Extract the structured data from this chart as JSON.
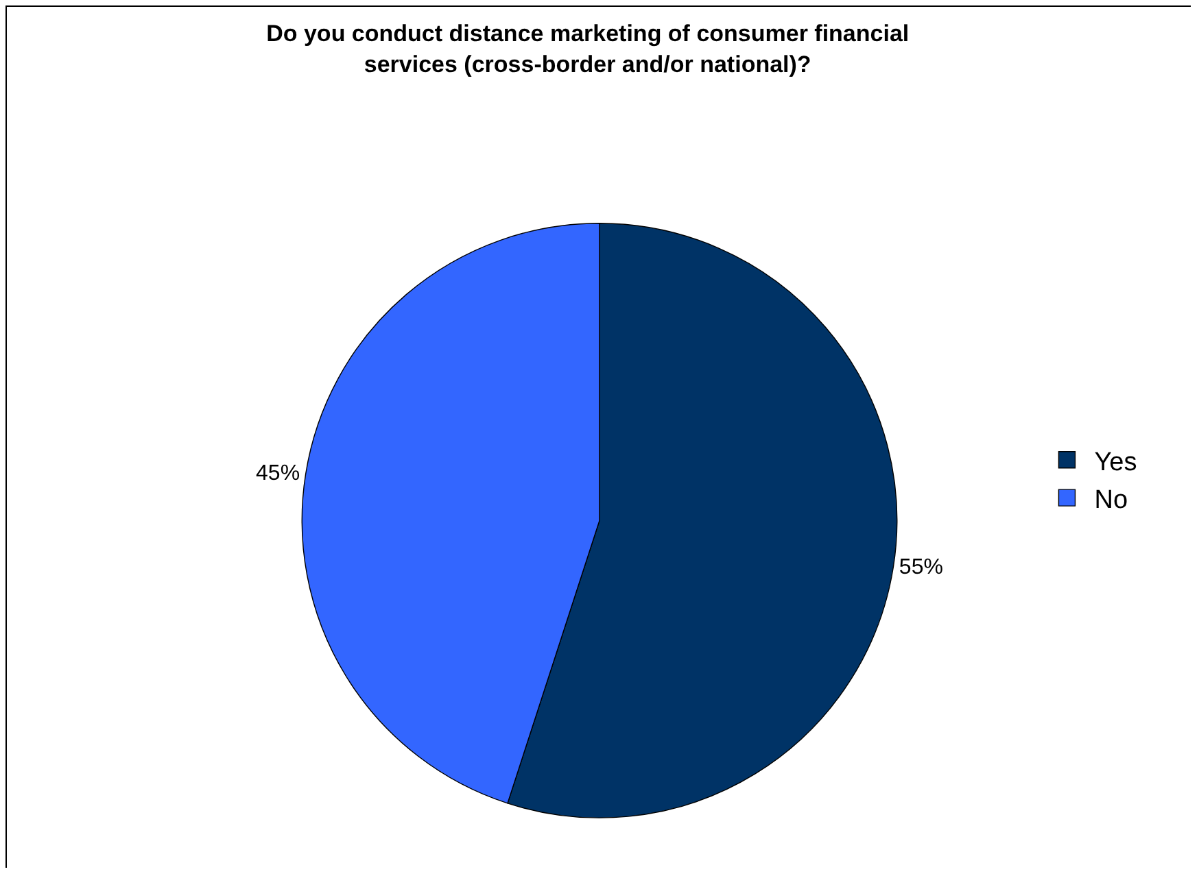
{
  "chart_data": {
    "type": "pie",
    "title": "Do you conduct distance marketing of consumer financial\nservices (cross-border and/or national)?",
    "categories": [
      "Yes",
      "No"
    ],
    "values": [
      55,
      45
    ],
    "colors": [
      "#003366",
      "#3366ff"
    ],
    "value_labels": [
      "55%",
      "45%"
    ],
    "legend": "right"
  }
}
